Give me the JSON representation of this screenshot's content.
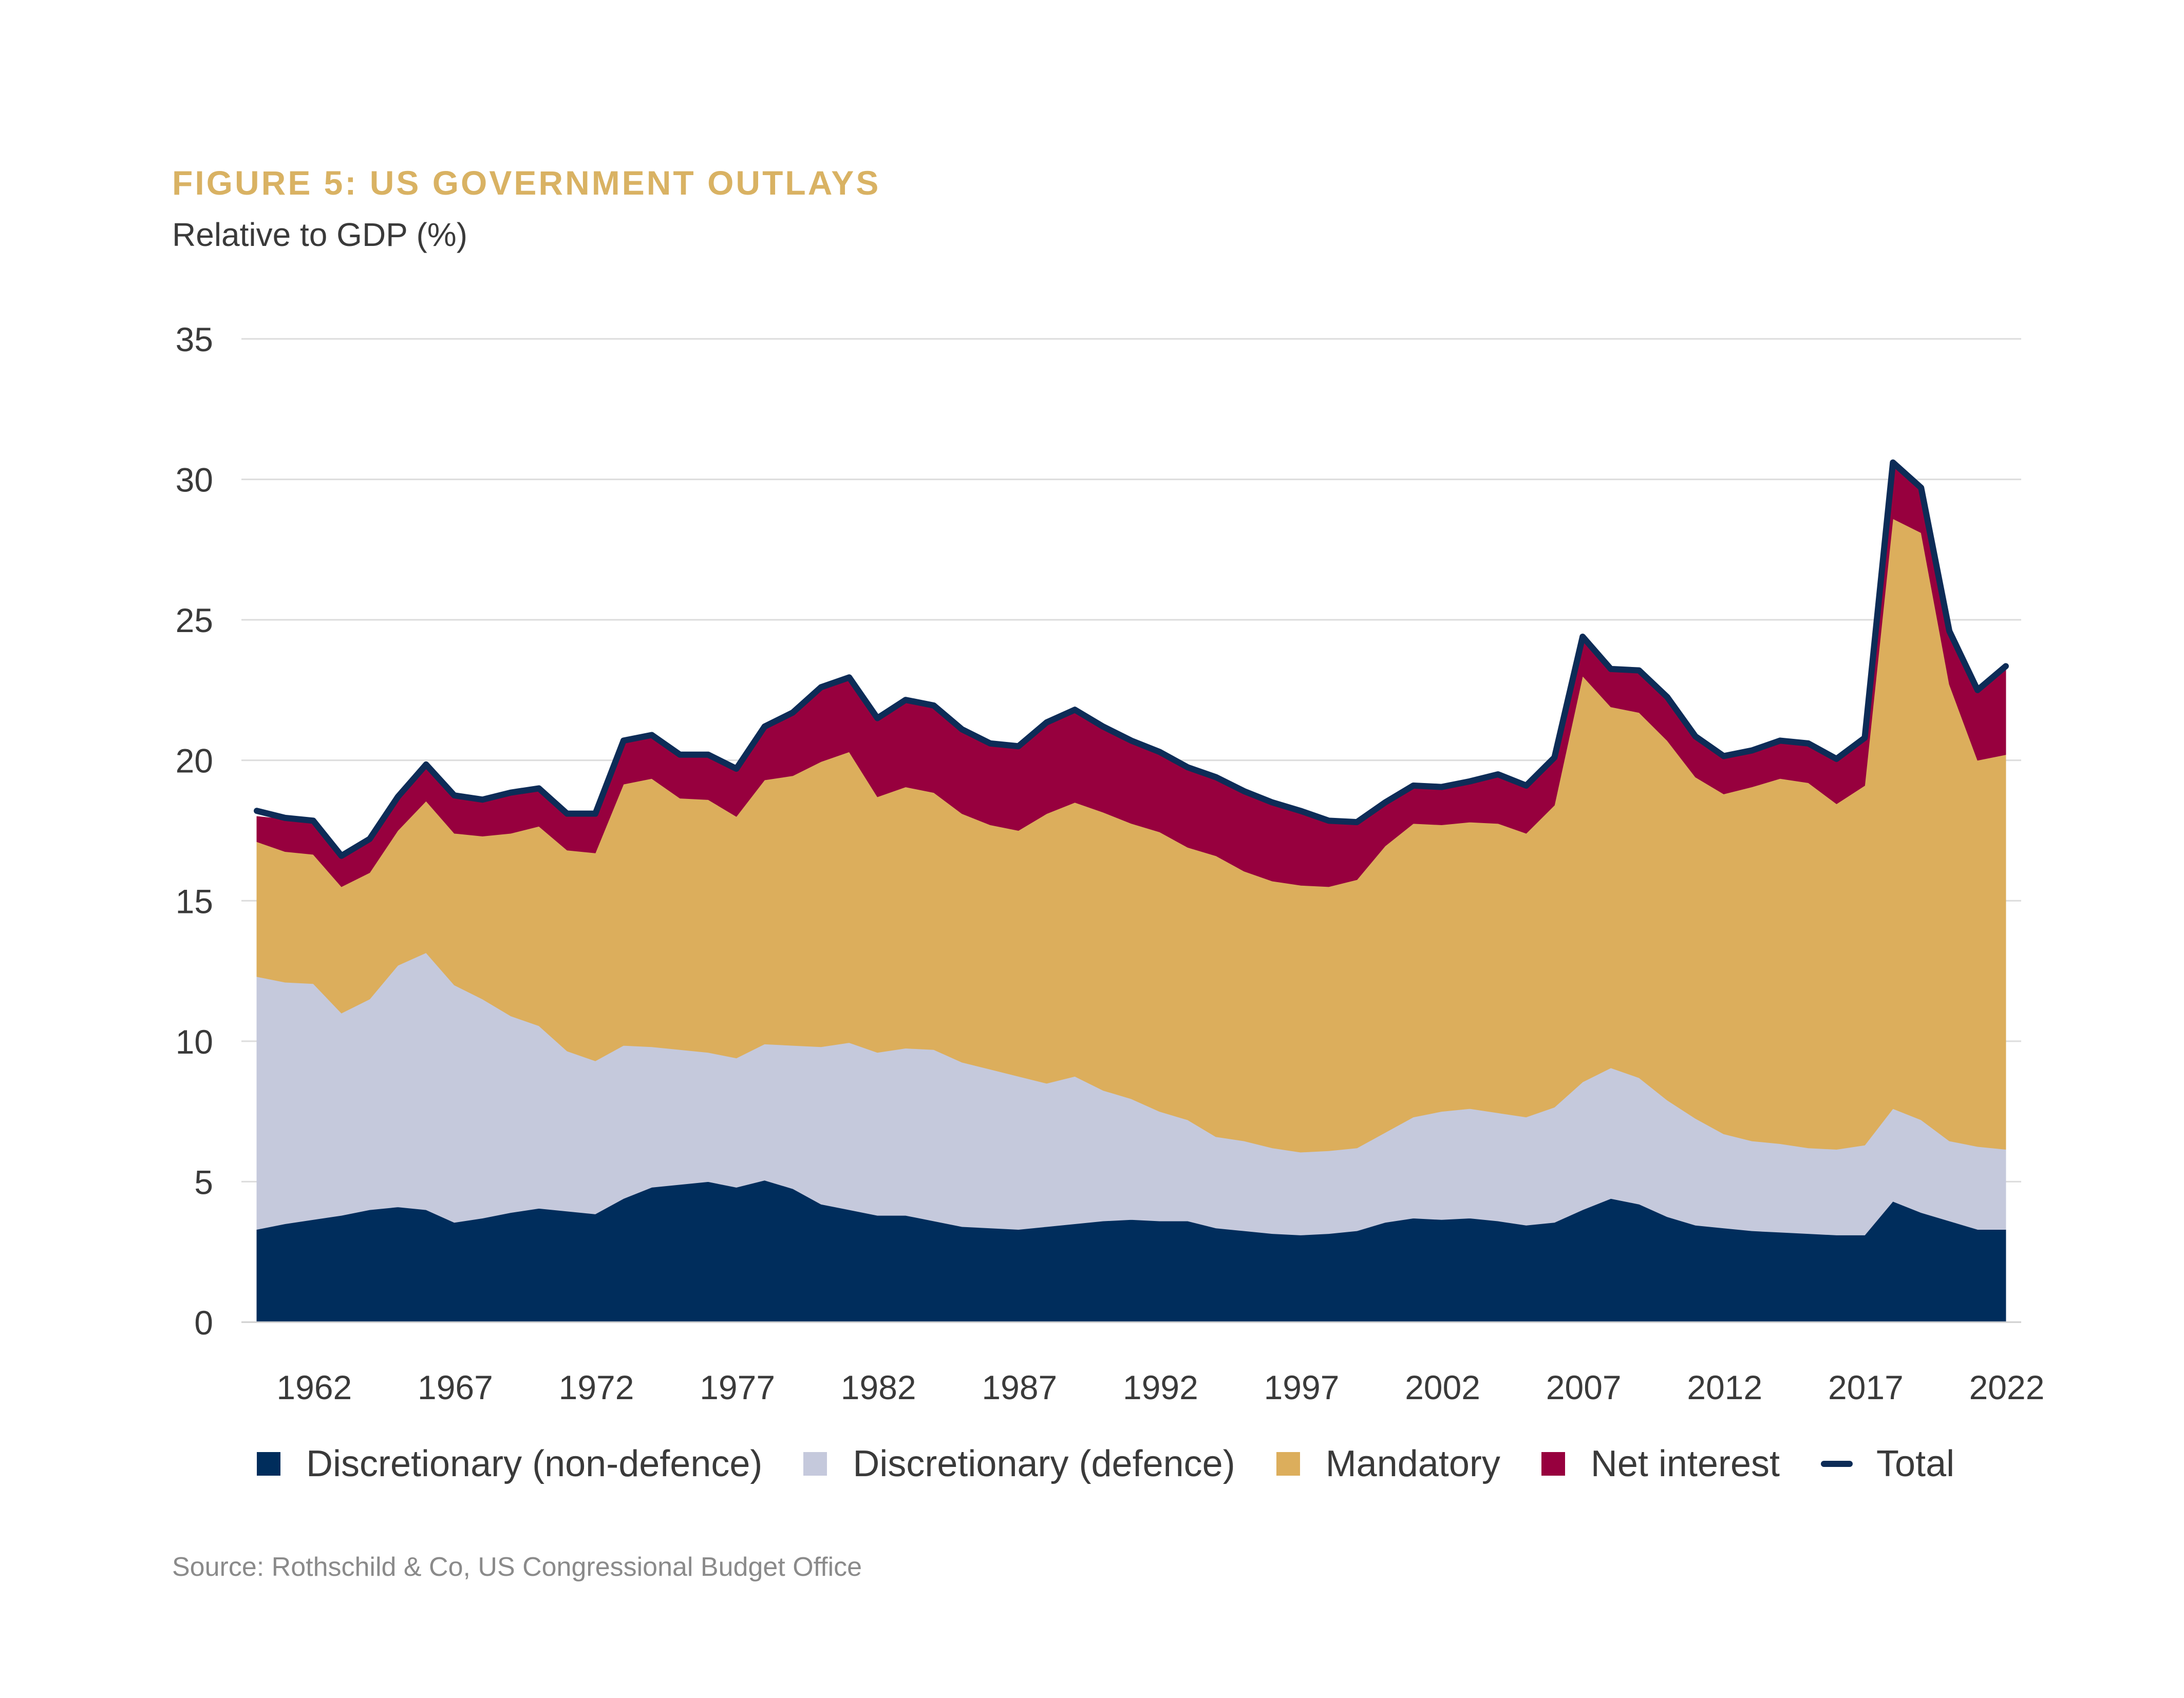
{
  "title": "FIGURE 5: US GOVERNMENT OUTLAYS",
  "subtitle": "Relative to GDP (%)",
  "source": "Source: Rothschild & Co, US Congressional Budget Office",
  "legend": [
    {
      "label": "Discretionary (non-defence)",
      "color": "#002d5c",
      "kind": "swatch"
    },
    {
      "label": "Discretionary (defence)",
      "color": "#c5c9dc",
      "kind": "swatch"
    },
    {
      "label": "Mandatory",
      "color": "#dcae5c",
      "kind": "swatch"
    },
    {
      "label": "Net interest",
      "color": "#97003e",
      "kind": "swatch"
    },
    {
      "label": "Total",
      "color": "#0d2c57",
      "kind": "line"
    }
  ],
  "chart_data": {
    "type": "area",
    "title": "FIGURE 5: US GOVERNMENT OUTLAYS",
    "ylabel": "Relative to GDP (%)",
    "xlabel": "",
    "ylim": [
      0,
      35
    ],
    "yticks": [
      "0",
      "5",
      "10",
      "15",
      "20",
      "25",
      "30",
      "35"
    ],
    "xticks": [
      "1962",
      "1967",
      "1972",
      "1977",
      "1982",
      "1987",
      "1992",
      "1997",
      "2002",
      "2007",
      "2012",
      "2017",
      "2022"
    ],
    "stacked": true,
    "grid": true,
    "x": [
      1960,
      1961,
      1962,
      1963,
      1964,
      1965,
      1966,
      1967,
      1968,
      1969,
      1970,
      1971,
      1972,
      1973,
      1974,
      1975,
      1976,
      1977,
      1978,
      1979,
      1980,
      1981,
      1982,
      1983,
      1984,
      1985,
      1986,
      1987,
      1988,
      1989,
      1990,
      1991,
      1992,
      1993,
      1994,
      1995,
      1996,
      1997,
      1998,
      1999,
      2000,
      2001,
      2002,
      2003,
      2004,
      2005,
      2006,
      2007,
      2008,
      2009,
      2010,
      2011,
      2012,
      2013,
      2014,
      2015,
      2016,
      2017,
      2018,
      2019,
      2020,
      2021,
      2022
    ],
    "series": [
      {
        "name": "Discretionary (non-defence)",
        "color": "#002d5c",
        "values": [
          3.3,
          3.5,
          3.65,
          3.8,
          4.0,
          4.1,
          4.0,
          3.55,
          3.7,
          3.9,
          4.05,
          3.95,
          3.85,
          4.4,
          4.8,
          4.9,
          5.0,
          4.8,
          5.05,
          4.75,
          4.2,
          4.0,
          3.8,
          3.8,
          3.6,
          3.4,
          3.35,
          3.3,
          3.4,
          3.5,
          3.6,
          3.65,
          3.6,
          3.6,
          3.35,
          3.25,
          3.15,
          3.1,
          3.15,
          3.25,
          3.55,
          3.7,
          3.65,
          3.7,
          3.6,
          3.45,
          3.55,
          4.0,
          4.4,
          4.2,
          3.75,
          3.45,
          3.35,
          3.25,
          3.2,
          3.15,
          3.1,
          3.1,
          4.3,
          3.9,
          3.6,
          3.3,
          3.3
        ]
      },
      {
        "name": "Discretionary (defence)",
        "color": "#c5c9dc",
        "values": [
          9.0,
          8.6,
          8.4,
          7.2,
          7.5,
          8.6,
          9.15,
          8.45,
          7.8,
          7.0,
          6.5,
          5.7,
          5.45,
          5.45,
          5.0,
          4.8,
          4.6,
          4.6,
          4.85,
          5.1,
          5.6,
          5.95,
          5.8,
          5.95,
          6.1,
          5.85,
          5.65,
          5.45,
          5.1,
          5.25,
          4.65,
          4.3,
          3.9,
          3.6,
          3.25,
          3.2,
          3.05,
          2.95,
          2.95,
          2.95,
          3.2,
          3.6,
          3.85,
          3.9,
          3.85,
          3.85,
          4.1,
          4.55,
          4.65,
          4.5,
          4.15,
          3.8,
          3.35,
          3.2,
          3.15,
          3.05,
          3.05,
          3.2,
          3.3,
          3.3,
          2.85,
          2.95,
          2.85
        ]
      },
      {
        "name": "Mandatory",
        "color": "#dcae5c",
        "values": [
          4.8,
          4.65,
          4.6,
          4.5,
          4.5,
          4.8,
          5.4,
          5.4,
          5.8,
          6.5,
          7.1,
          7.15,
          7.4,
          9.3,
          9.55,
          8.95,
          9.0,
          8.6,
          9.4,
          9.6,
          10.15,
          10.35,
          9.1,
          9.3,
          9.15,
          8.85,
          8.7,
          8.75,
          9.6,
          9.75,
          9.9,
          9.8,
          9.95,
          9.7,
          10.0,
          9.6,
          9.5,
          9.5,
          9.4,
          9.55,
          10.2,
          10.45,
          10.2,
          10.2,
          10.3,
          10.1,
          10.75,
          14.45,
          12.85,
          13.0,
          12.8,
          12.15,
          12.1,
          12.6,
          13.0,
          13.0,
          12.3,
          12.8,
          21.0,
          20.9,
          16.25,
          13.75,
          14.05
        ]
      },
      {
        "name": "Net interest",
        "color": "#97003e",
        "values": [
          0.9,
          1.15,
          1.2,
          1.1,
          1.2,
          1.2,
          1.3,
          1.35,
          1.3,
          1.45,
          1.35,
          1.3,
          1.4,
          1.55,
          1.55,
          1.55,
          1.6,
          1.7,
          1.9,
          2.25,
          2.65,
          2.65,
          2.8,
          3.1,
          3.1,
          3.0,
          2.9,
          3.0,
          3.25,
          3.3,
          3.05,
          2.95,
          2.85,
          2.85,
          2.8,
          2.85,
          2.8,
          2.65,
          2.35,
          2.05,
          1.55,
          1.35,
          1.25,
          1.45,
          1.75,
          1.7,
          1.7,
          1.4,
          1.35,
          1.5,
          1.55,
          1.45,
          1.35,
          1.3,
          1.35,
          1.4,
          1.6,
          1.7,
          2.0,
          1.6,
          1.9,
          2.5,
          3.15
        ]
      },
      {
        "name": "Total",
        "color": "#0d2c57",
        "kind": "line",
        "values": [
          18.2,
          17.95,
          17.85,
          16.6,
          17.2,
          18.7,
          19.85,
          18.75,
          18.6,
          18.85,
          19.0,
          18.1,
          18.1,
          20.7,
          20.9,
          20.2,
          20.2,
          19.7,
          21.2,
          21.7,
          22.6,
          22.95,
          21.5,
          22.15,
          21.95,
          21.1,
          20.6,
          20.5,
          21.35,
          21.8,
          21.2,
          20.7,
          20.3,
          19.75,
          19.4,
          18.9,
          18.5,
          18.2,
          17.85,
          17.8,
          18.5,
          19.1,
          19.05,
          19.25,
          19.5,
          19.1,
          20.1,
          24.4,
          23.25,
          23.2,
          22.25,
          20.85,
          20.15,
          20.35,
          20.7,
          20.6,
          20.05,
          20.8,
          30.6,
          29.7,
          24.6,
          22.5,
          23.35
        ]
      }
    ]
  }
}
